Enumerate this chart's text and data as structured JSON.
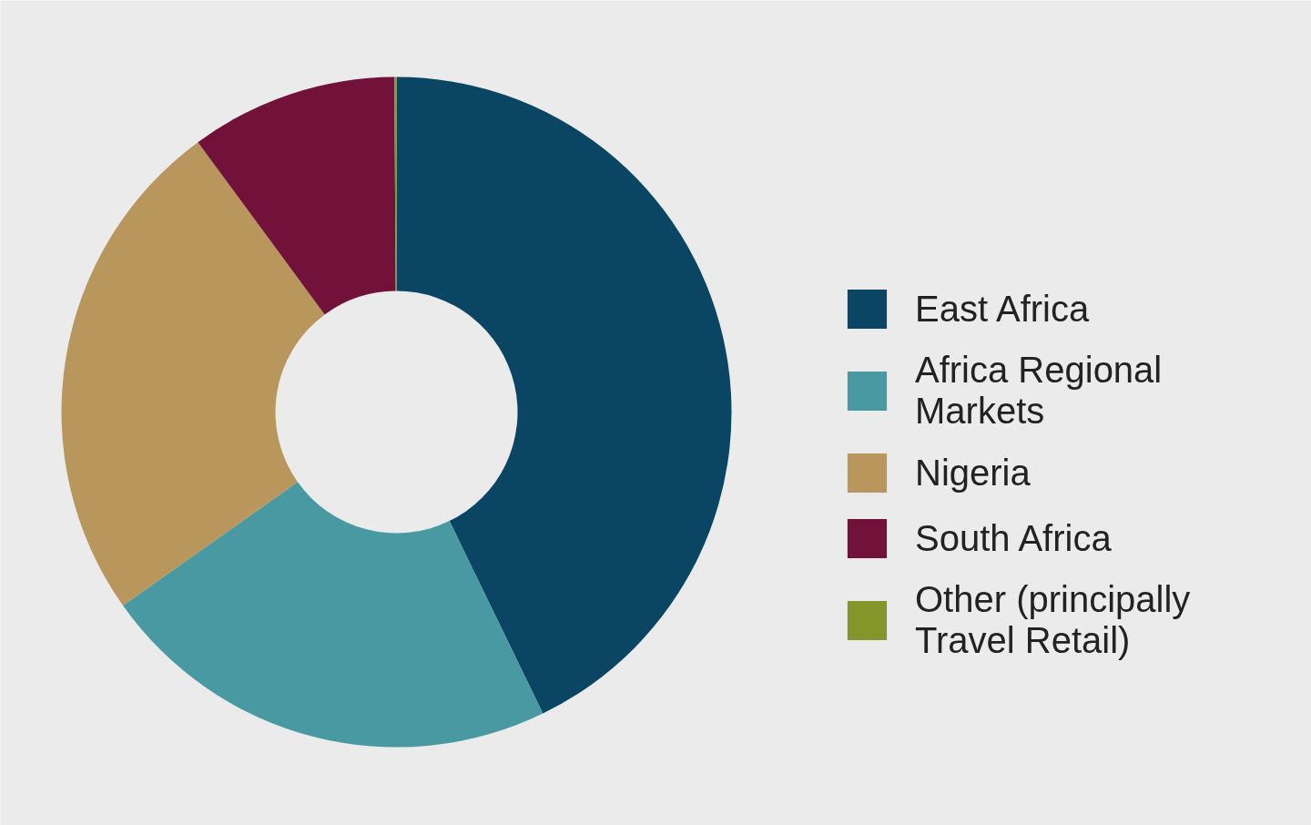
{
  "chart_data": {
    "type": "donut",
    "categories": [
      "East Africa",
      "Africa Regional Markets",
      "Nigeria",
      "South Africa",
      "Other (principally Travel Retail)"
    ],
    "values": [
      42.8,
      22.4,
      24.7,
      10.0,
      0.1
    ],
    "colors": [
      "#0a4564",
      "#4899a1",
      "#b9965b",
      "#72123a",
      "#84962a"
    ],
    "legend": "right"
  }
}
